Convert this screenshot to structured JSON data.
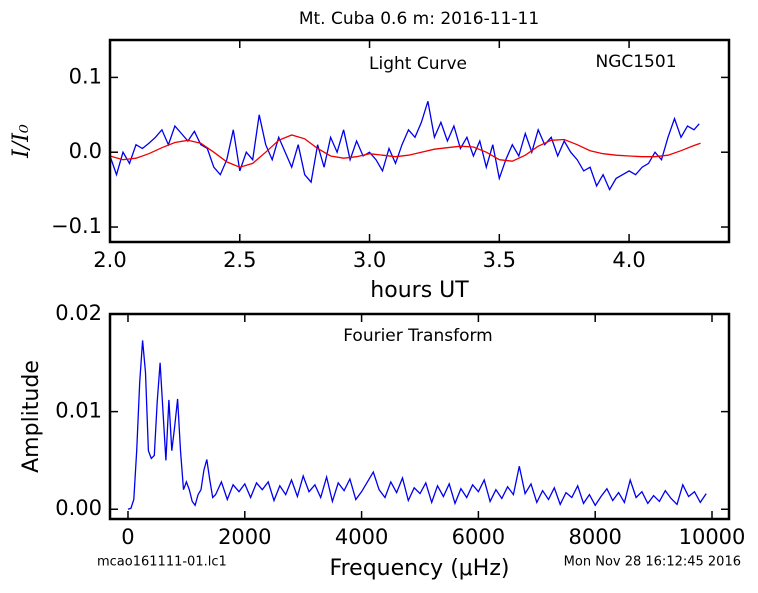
{
  "title": "Mt. Cuba 0.6 m:  2016-11-11",
  "footer_left": "mcao161111-01.lc1",
  "footer_right": "Mon Nov 28 16:12:45 2016",
  "chart_data": [
    {
      "type": "line",
      "annotations": [
        "Light Curve",
        "NGC1501"
      ],
      "x_label": "hours UT",
      "y_label": "I/I₀",
      "xlim": [
        2.0,
        4.385
      ],
      "ylim": [
        -0.12,
        0.15
      ],
      "xticks": [
        {
          "value": 2.0,
          "label": "2.0"
        },
        2.5,
        {
          "value": 3.0,
          "label": "3.0"
        },
        3.5,
        {
          "value": 4.0,
          "label": "4.0"
        }
      ],
      "yticks": [
        {
          "value": -0.1,
          "label": "−0.1"
        },
        {
          "value": 0.0,
          "label": "0.0"
        },
        0.1
      ],
      "series": [
        {
          "color": "#0000ee",
          "x": [
            2.0,
            2.025,
            2.05,
            2.075,
            2.1,
            2.125,
            2.15,
            2.175,
            2.2,
            2.225,
            2.25,
            2.275,
            2.3,
            2.325,
            2.35,
            2.375,
            2.4,
            2.425,
            2.45,
            2.475,
            2.5,
            2.525,
            2.55,
            2.575,
            2.6,
            2.625,
            2.65,
            2.675,
            2.7,
            2.725,
            2.75,
            2.775,
            2.8,
            2.825,
            2.85,
            2.875,
            2.9,
            2.925,
            2.95,
            2.975,
            3.0,
            3.025,
            3.05,
            3.075,
            3.1,
            3.125,
            3.15,
            3.175,
            3.2,
            3.225,
            3.25,
            3.275,
            3.3,
            3.325,
            3.35,
            3.375,
            3.4,
            3.425,
            3.45,
            3.475,
            3.5,
            3.525,
            3.55,
            3.575,
            3.6,
            3.625,
            3.65,
            3.675,
            3.7,
            3.725,
            3.75,
            3.775,
            3.8,
            3.825,
            3.85,
            3.875,
            3.9,
            3.925,
            3.95,
            3.975,
            4.0,
            4.025,
            4.05,
            4.075,
            4.1,
            4.125,
            4.15,
            4.175,
            4.2,
            4.225,
            4.25,
            4.27
          ],
          "values": [
            -0.005,
            -0.03,
            0.0,
            -0.015,
            0.01,
            0.005,
            0.012,
            0.02,
            0.03,
            0.01,
            0.035,
            0.025,
            0.015,
            0.028,
            0.01,
            0.005,
            -0.02,
            -0.03,
            -0.01,
            0.03,
            -0.025,
            0.0,
            -0.01,
            0.05,
            0.01,
            -0.01,
            0.02,
            0.0,
            -0.02,
            0.01,
            -0.03,
            -0.04,
            0.01,
            -0.02,
            0.02,
            0.0,
            0.03,
            -0.01,
            0.015,
            -0.005,
            0.0,
            -0.01,
            -0.025,
            0.005,
            -0.015,
            0.01,
            0.03,
            0.02,
            0.04,
            0.068,
            0.02,
            0.04,
            0.015,
            0.035,
            0.005,
            0.02,
            -0.005,
            0.015,
            -0.02,
            0.01,
            -0.035,
            -0.01,
            0.01,
            -0.005,
            0.025,
            0.0,
            0.03,
            0.01,
            0.02,
            -0.005,
            0.015,
            0.0,
            -0.01,
            -0.025,
            -0.02,
            -0.045,
            -0.03,
            -0.05,
            -0.035,
            -0.03,
            -0.025,
            -0.03,
            -0.02,
            -0.015,
            0.0,
            -0.01,
            0.02,
            0.045,
            0.02,
            0.035,
            0.03,
            0.038
          ]
        },
        {
          "color": "#ee0000",
          "x": [
            2.0,
            2.05,
            2.1,
            2.15,
            2.2,
            2.25,
            2.3,
            2.35,
            2.4,
            2.45,
            2.5,
            2.55,
            2.6,
            2.65,
            2.7,
            2.75,
            2.8,
            2.85,
            2.9,
            2.95,
            3.0,
            3.05,
            3.1,
            3.15,
            3.2,
            3.25,
            3.3,
            3.35,
            3.4,
            3.45,
            3.5,
            3.55,
            3.6,
            3.65,
            3.7,
            3.75,
            3.8,
            3.85,
            3.9,
            3.95,
            4.0,
            4.05,
            4.1,
            4.15,
            4.2,
            4.25,
            4.275
          ],
          "values": [
            -0.005,
            -0.01,
            -0.008,
            -0.002,
            0.006,
            0.013,
            0.016,
            0.012,
            0.0,
            -0.013,
            -0.02,
            -0.015,
            0.0,
            0.016,
            0.023,
            0.018,
            0.005,
            -0.005,
            -0.008,
            -0.006,
            -0.002,
            -0.004,
            -0.006,
            -0.004,
            0.0,
            0.004,
            0.006,
            0.008,
            0.007,
            0.0,
            -0.01,
            -0.012,
            -0.004,
            0.008,
            0.016,
            0.017,
            0.01,
            0.002,
            -0.002,
            -0.004,
            -0.005,
            -0.006,
            -0.006,
            -0.004,
            0.002,
            0.009,
            0.012
          ]
        }
      ]
    },
    {
      "type": "line",
      "annotations": [
        "Fourier Transform"
      ],
      "x_label": "Frequency (μHz)",
      "y_label": "Amplitude",
      "xlim": [
        -308,
        10291
      ],
      "ylim": [
        -0.001,
        0.02
      ],
      "xticks": [
        0,
        2000,
        4000,
        6000,
        8000,
        10000
      ],
      "yticks": [
        {
          "value": 0.0,
          "label": "0.00"
        },
        0.01,
        {
          "value": 0.02,
          "label": "0.02"
        }
      ],
      "series": [
        {
          "color": "#0000ee",
          "x": [
            0,
            50,
            100,
            150,
            200,
            250,
            300,
            350,
            400,
            450,
            500,
            550,
            600,
            650,
            700,
            750,
            800,
            850,
            900,
            950,
            1000,
            1050,
            1100,
            1150,
            1200,
            1250,
            1300,
            1350,
            1400,
            1450,
            1500,
            1600,
            1700,
            1800,
            1900,
            2000,
            2100,
            2200,
            2300,
            2400,
            2500,
            2600,
            2700,
            2800,
            2900,
            3000,
            3100,
            3200,
            3300,
            3400,
            3500,
            3600,
            3700,
            3800,
            3900,
            4000,
            4100,
            4200,
            4300,
            4400,
            4500,
            4600,
            4700,
            4800,
            4900,
            5000,
            5100,
            5200,
            5300,
            5400,
            5500,
            5600,
            5700,
            5800,
            5900,
            6000,
            6100,
            6200,
            6300,
            6400,
            6500,
            6600,
            6700,
            6800,
            6900,
            7000,
            7100,
            7200,
            7300,
            7400,
            7500,
            7600,
            7700,
            7800,
            7900,
            8000,
            8100,
            8200,
            8300,
            8400,
            8500,
            8600,
            8700,
            8800,
            8900,
            9000,
            9100,
            9200,
            9300,
            9400,
            9500,
            9600,
            9700,
            9800,
            9900
          ],
          "values": [
            0.0,
            0.0001,
            0.001,
            0.006,
            0.013,
            0.0173,
            0.014,
            0.006,
            0.0052,
            0.0055,
            0.011,
            0.015,
            0.01,
            0.005,
            0.0112,
            0.006,
            0.0085,
            0.0113,
            0.006,
            0.002,
            0.0028,
            0.002,
            0.0008,
            0.0004,
            0.0015,
            0.002,
            0.004,
            0.0051,
            0.003,
            0.0012,
            0.0015,
            0.0028,
            0.001,
            0.0025,
            0.0018,
            0.0026,
            0.0012,
            0.0027,
            0.002,
            0.0028,
            0.0009,
            0.0024,
            0.0015,
            0.003,
            0.0013,
            0.0034,
            0.0018,
            0.0025,
            0.0012,
            0.0033,
            0.0008,
            0.0027,
            0.0019,
            0.0031,
            0.001,
            0.0018,
            0.0028,
            0.0038,
            0.002,
            0.0012,
            0.0028,
            0.0017,
            0.0032,
            0.0009,
            0.0022,
            0.0016,
            0.0027,
            0.0007,
            0.0024,
            0.0013,
            0.0026,
            0.0006,
            0.0021,
            0.0012,
            0.0025,
            0.0018,
            0.003,
            0.0008,
            0.002,
            0.0011,
            0.0023,
            0.0015,
            0.0044,
            0.0016,
            0.0026,
            0.0007,
            0.0019,
            0.001,
            0.0022,
            0.0005,
            0.0017,
            0.0012,
            0.0024,
            0.0006,
            0.0015,
            0.0004,
            0.0013,
            0.0021,
            0.0009,
            0.0017,
            0.0007,
            0.003,
            0.0012,
            0.0018,
            0.0006,
            0.0014,
            0.0008,
            0.0019,
            0.0011,
            0.0005,
            0.0025,
            0.0013,
            0.0018,
            0.0007,
            0.0016
          ]
        }
      ]
    }
  ]
}
